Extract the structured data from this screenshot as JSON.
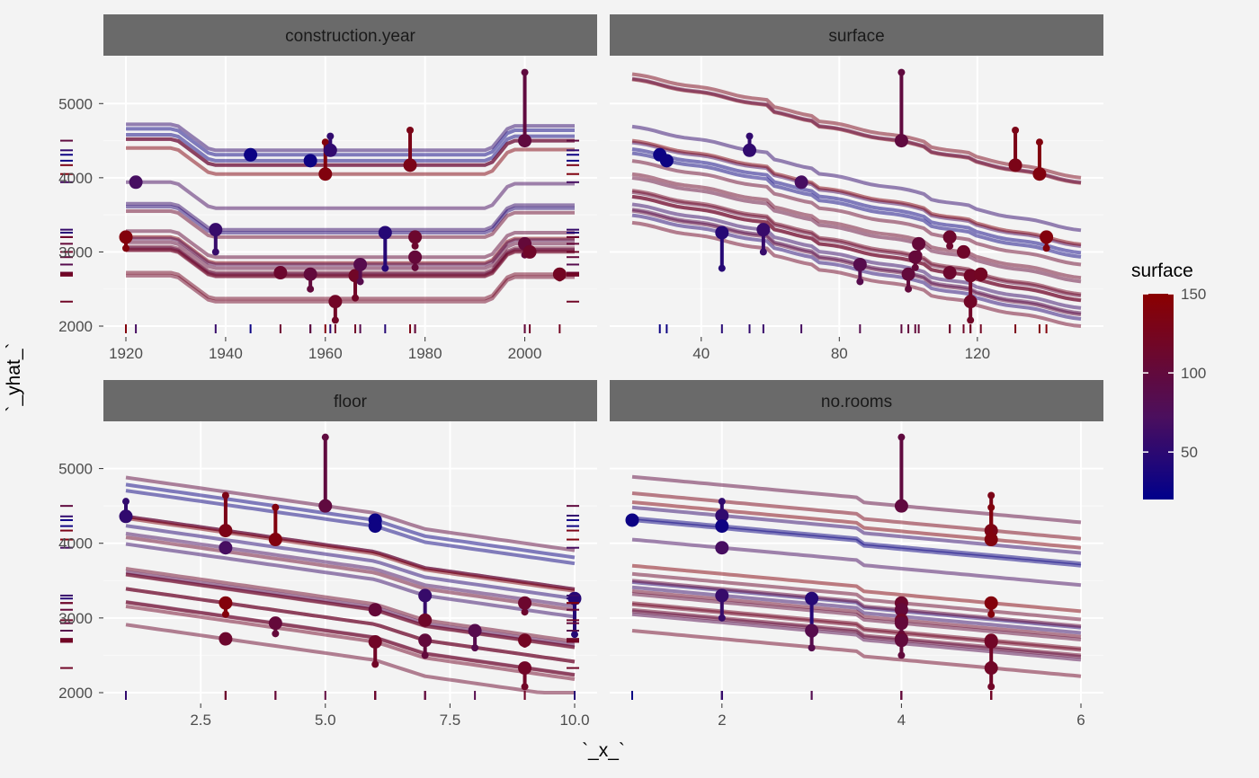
{
  "chart_data": {
    "type": "line",
    "description_style": "ceteris-paribus profiles with observed points and residual segments, faceted",
    "xlabel": "`_x_`",
    "ylabel": "`_yhat_`",
    "ylim": [
      2000,
      5500
    ],
    "y_ticks": [
      2000,
      3000,
      4000,
      5000
    ],
    "grid": true,
    "legend": {
      "title": "surface",
      "placement": "right",
      "range": [
        20,
        150
      ],
      "ticks": [
        50,
        100,
        150
      ],
      "color_low": "#00008b",
      "color_mid": "#4b0f5e",
      "color_high": "#8b0000"
    },
    "panels": [
      {
        "variable": "construction.year",
        "xlim": [
          1920,
          2010
        ],
        "x_ticks": [
          1920,
          1940,
          1960,
          1980,
          2000
        ],
        "x_tick_labels": [
          "1920",
          "1940",
          "1960",
          "1980",
          "2000"
        ],
        "observations": [
          {
            "x": 1945,
            "pred": 4310,
            "actual": 4310,
            "surface": 28
          },
          {
            "x": 1957,
            "pred": 4230,
            "actual": 4230,
            "surface": 30
          },
          {
            "x": 1960,
            "pred": 4050,
            "actual": 4480,
            "surface": 138
          },
          {
            "x": 1961,
            "pred": 4370,
            "actual": 4560,
            "surface": 54
          },
          {
            "x": 1977,
            "pred": 4170,
            "actual": 4640,
            "surface": 131
          },
          {
            "x": 2000,
            "pred": 4500,
            "actual": 5420,
            "surface": 98
          },
          {
            "x": 1922,
            "pred": 3940,
            "actual": 3940,
            "surface": 69
          },
          {
            "x": 1920,
            "pred": 3200,
            "actual": 3050,
            "surface": 140
          },
          {
            "x": 1938,
            "pred": 3300,
            "actual": 3000,
            "surface": 58
          },
          {
            "x": 1972,
            "pred": 3260,
            "actual": 2780,
            "surface": 46
          },
          {
            "x": 1978,
            "pred": 3200,
            "actual": 3080,
            "surface": 112
          },
          {
            "x": 1978,
            "pred": 2930,
            "actual": 2790,
            "surface": 102
          },
          {
            "x": 2000,
            "pred": 3110,
            "actual": 2960,
            "surface": 103
          },
          {
            "x": 2001,
            "pred": 3000,
            "actual": 3000,
            "surface": 116
          },
          {
            "x": 1951,
            "pred": 2720,
            "actual": 2720,
            "surface": 112
          },
          {
            "x": 1957,
            "pred": 2700,
            "actual": 2500,
            "surface": 100
          },
          {
            "x": 1962,
            "pred": 2330,
            "actual": 2080,
            "surface": 118
          },
          {
            "x": 1966,
            "pred": 2680,
            "actual": 2380,
            "surface": 118
          },
          {
            "x": 1967,
            "pred": 2830,
            "actual": 2600,
            "surface": 86
          },
          {
            "x": 2007,
            "pred": 2700,
            "actual": 2650,
            "surface": 121
          }
        ]
      },
      {
        "variable": "surface",
        "xlim": [
          20,
          150
        ],
        "x_ticks": [
          40,
          80,
          120
        ],
        "x_tick_labels": [
          "40",
          "80",
          "120"
        ],
        "observations": [
          {
            "x": 28,
            "pred": 4310,
            "actual": 4310,
            "surface": 28
          },
          {
            "x": 30,
            "pred": 4230,
            "actual": 4230,
            "surface": 30
          },
          {
            "x": 138,
            "pred": 4050,
            "actual": 4480,
            "surface": 138
          },
          {
            "x": 54,
            "pred": 4370,
            "actual": 4560,
            "surface": 54
          },
          {
            "x": 131,
            "pred": 4170,
            "actual": 4640,
            "surface": 131
          },
          {
            "x": 98,
            "pred": 4500,
            "actual": 5420,
            "surface": 98
          },
          {
            "x": 69,
            "pred": 3940,
            "actual": 3940,
            "surface": 69
          },
          {
            "x": 140,
            "pred": 3200,
            "actual": 3050,
            "surface": 140
          },
          {
            "x": 58,
            "pred": 3300,
            "actual": 3000,
            "surface": 58
          },
          {
            "x": 46,
            "pred": 3260,
            "actual": 2780,
            "surface": 46
          },
          {
            "x": 112,
            "pred": 3200,
            "actual": 3080,
            "surface": 112
          },
          {
            "x": 102,
            "pred": 2930,
            "actual": 2790,
            "surface": 102
          },
          {
            "x": 103,
            "pred": 3110,
            "actual": 2960,
            "surface": 103
          },
          {
            "x": 116,
            "pred": 3000,
            "actual": 3000,
            "surface": 116
          },
          {
            "x": 112,
            "pred": 2720,
            "actual": 2720,
            "surface": 112
          },
          {
            "x": 100,
            "pred": 2700,
            "actual": 2500,
            "surface": 100
          },
          {
            "x": 118,
            "pred": 2330,
            "actual": 2080,
            "surface": 118
          },
          {
            "x": 118,
            "pred": 2680,
            "actual": 2380,
            "surface": 118
          },
          {
            "x": 86,
            "pred": 2830,
            "actual": 2600,
            "surface": 86
          },
          {
            "x": 121,
            "pred": 2700,
            "actual": 2650,
            "surface": 121
          }
        ]
      },
      {
        "variable": "floor",
        "xlim": [
          1,
          10
        ],
        "x_ticks": [
          2.5,
          5.0,
          7.5,
          10.0
        ],
        "x_tick_labels": [
          "2.5",
          "5.0",
          "7.5",
          "10.0"
        ],
        "observations": [
          {
            "x": 1,
            "pred": 4360,
            "actual": 4560,
            "surface": 54
          },
          {
            "x": 6,
            "pred": 4310,
            "actual": 4310,
            "surface": 28
          },
          {
            "x": 6,
            "pred": 4230,
            "actual": 4230,
            "surface": 30
          },
          {
            "x": 3,
            "pred": 4170,
            "actual": 4640,
            "surface": 131
          },
          {
            "x": 4,
            "pred": 4050,
            "actual": 4480,
            "surface": 138
          },
          {
            "x": 5,
            "pred": 4500,
            "actual": 5420,
            "surface": 98
          },
          {
            "x": 3,
            "pred": 3940,
            "actual": 3940,
            "surface": 69
          },
          {
            "x": 10,
            "pred": 3260,
            "actual": 2780,
            "surface": 46
          },
          {
            "x": 7,
            "pred": 3300,
            "actual": 3000,
            "surface": 58
          },
          {
            "x": 3,
            "pred": 3200,
            "actual": 3050,
            "surface": 140
          },
          {
            "x": 9,
            "pred": 3200,
            "actual": 3080,
            "surface": 112
          },
          {
            "x": 6,
            "pred": 3110,
            "actual": 3110,
            "surface": 103
          },
          {
            "x": 4,
            "pred": 2930,
            "actual": 2790,
            "surface": 102
          },
          {
            "x": 7,
            "pred": 2970,
            "actual": 2970,
            "surface": 116
          },
          {
            "x": 8,
            "pred": 2830,
            "actual": 2600,
            "surface": 86
          },
          {
            "x": 3,
            "pred": 2720,
            "actual": 2720,
            "surface": 112
          },
          {
            "x": 7,
            "pred": 2700,
            "actual": 2500,
            "surface": 100
          },
          {
            "x": 6,
            "pred": 2680,
            "actual": 2380,
            "surface": 118
          },
          {
            "x": 9,
            "pred": 2700,
            "actual": 2650,
            "surface": 121
          },
          {
            "x": 9,
            "pred": 2330,
            "actual": 2080,
            "surface": 118
          }
        ]
      },
      {
        "variable": "no.rooms",
        "xlim": [
          1,
          6
        ],
        "x_ticks": [
          2,
          4,
          6
        ],
        "x_tick_labels": [
          "2",
          "4",
          "6"
        ],
        "observations": [
          {
            "x": 1,
            "pred": 4310,
            "actual": 4310,
            "surface": 28
          },
          {
            "x": 2,
            "pred": 4370,
            "actual": 4560,
            "surface": 54
          },
          {
            "x": 2,
            "pred": 4230,
            "actual": 4230,
            "surface": 30
          },
          {
            "x": 4,
            "pred": 4500,
            "actual": 5420,
            "surface": 98
          },
          {
            "x": 5,
            "pred": 4170,
            "actual": 4640,
            "surface": 131
          },
          {
            "x": 5,
            "pred": 4050,
            "actual": 4480,
            "surface": 138
          },
          {
            "x": 2,
            "pred": 3940,
            "actual": 3940,
            "surface": 69
          },
          {
            "x": 2,
            "pred": 3300,
            "actual": 3000,
            "surface": 58
          },
          {
            "x": 3,
            "pred": 3260,
            "actual": 2780,
            "surface": 46
          },
          {
            "x": 3,
            "pred": 2830,
            "actual": 2600,
            "surface": 86
          },
          {
            "x": 4,
            "pred": 3200,
            "actual": 3080,
            "surface": 112
          },
          {
            "x": 4,
            "pred": 3110,
            "actual": 3110,
            "surface": 103
          },
          {
            "x": 4,
            "pred": 2970,
            "actual": 2970,
            "surface": 116
          },
          {
            "x": 4,
            "pred": 2930,
            "actual": 2790,
            "surface": 102
          },
          {
            "x": 4,
            "pred": 2720,
            "actual": 2720,
            "surface": 112
          },
          {
            "x": 4,
            "pred": 2700,
            "actual": 2500,
            "surface": 100
          },
          {
            "x": 5,
            "pred": 3200,
            "actual": 3050,
            "surface": 140
          },
          {
            "x": 5,
            "pred": 2700,
            "actual": 2650,
            "surface": 121
          },
          {
            "x": 5,
            "pred": 2680,
            "actual": 2380,
            "surface": 118
          },
          {
            "x": 5,
            "pred": 2330,
            "actual": 2080,
            "surface": 118
          }
        ]
      }
    ]
  }
}
